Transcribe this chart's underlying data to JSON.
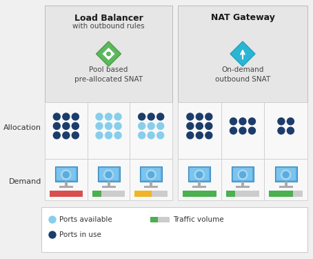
{
  "title_lb": "Load Balancer",
  "subtitle_lb": "with outbound rules",
  "caption_lb": "Pool based\npre-allocated SNAT",
  "title_nat": "NAT Gateway",
  "caption_nat": "On-demand\noutbound SNAT",
  "label_allocation": "Allocation",
  "label_demand": "Demand",
  "bg_header": "#e6e6e6",
  "bg_cell": "#f5f5f5",
  "bg_fig": "#f0f0f0",
  "color_dark_blue": "#1c3d6b",
  "color_light_blue": "#87ceeb",
  "color_green": "#4caf50",
  "color_gray": "#cccccc",
  "color_red": "#d94f4f",
  "color_yellow": "#f0b429",
  "color_lb_icon": "#5cb85c",
  "color_nat_icon": "#29b6d4",
  "lb_demand": [
    {
      "color": "#d94f4f",
      "fill": 1.0
    },
    {
      "color": "#4caf50",
      "fill": 0.28
    },
    {
      "color": "#f0b429",
      "fill": 0.52
    }
  ],
  "nat_demand": [
    {
      "color": "#4caf50",
      "fill": 1.0
    },
    {
      "color": "#4caf50",
      "fill": 0.28
    },
    {
      "color": "#4caf50",
      "fill": 0.72
    }
  ],
  "lb_dot_patterns": [
    {
      "rows": 3,
      "cols": 3,
      "dark": 9,
      "light": 0
    },
    {
      "rows": 3,
      "cols": 3,
      "dark": 0,
      "light": 9
    },
    {
      "rows": 3,
      "cols": 3,
      "dark": 3,
      "light": 6
    }
  ],
  "nat_dot_patterns": [
    {
      "rows": 3,
      "cols": 3,
      "dark": 9,
      "light": 0
    },
    {
      "rows": 2,
      "cols": 3,
      "dark": 6,
      "light": 0
    },
    {
      "rows": 2,
      "cols": 2,
      "dark": 4,
      "light": 0
    }
  ]
}
